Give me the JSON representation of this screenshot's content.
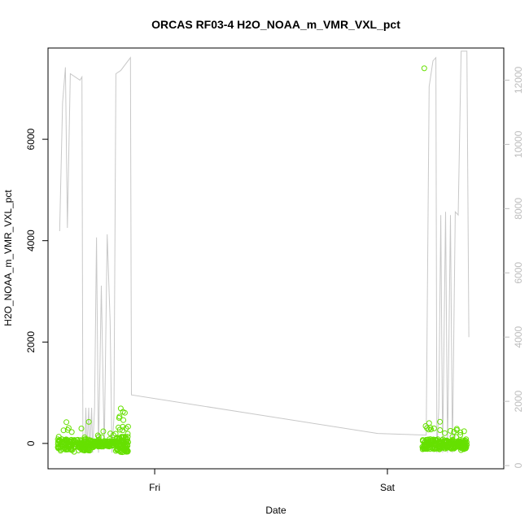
{
  "chart_data": {
    "type": "scatter",
    "title": "ORCAS RF03-4 H2O_NOAA_m_VMR_VXL_pct",
    "xlabel": "Date",
    "ylabel": "H2O_NOAA_m_VMR_VXL_pct",
    "x_ticks": [
      {
        "label": "Fri",
        "value": 24.0
      },
      {
        "label": "Sat",
        "value": 48.0
      }
    ],
    "xlim": [
      13.0,
      60.0
    ],
    "left_axis": {
      "ylim": [
        -500,
        7800
      ],
      "ticks": [
        0,
        2000,
        4000,
        6000
      ],
      "tick_labels": [
        "0",
        "2000",
        "4000",
        "6000"
      ]
    },
    "right_axis": {
      "ylim": [
        -100,
        13000
      ],
      "ticks": [
        0,
        2000,
        4000,
        6000,
        8000,
        10000,
        12000
      ],
      "tick_labels": [
        "0",
        "2000",
        "4000",
        "6000",
        "8000",
        "10000",
        "12000"
      ],
      "color": "#bdbdbd"
    },
    "series": [
      {
        "kind": "line",
        "axis": "right",
        "color": "#c8c8c8",
        "points": [
          [
            14.2,
            7300
          ],
          [
            14.5,
            11300
          ],
          [
            14.8,
            12400
          ],
          [
            15.0,
            7400
          ],
          [
            15.3,
            12200
          ],
          [
            16.3,
            12000
          ],
          [
            16.5,
            12100
          ],
          [
            16.6,
            400
          ],
          [
            16.8,
            600
          ],
          [
            16.9,
            1800
          ],
          [
            17.0,
            400
          ],
          [
            17.2,
            1800
          ],
          [
            17.3,
            400
          ],
          [
            17.5,
            1800
          ],
          [
            17.6,
            400
          ],
          [
            17.8,
            1800
          ],
          [
            18.0,
            7100
          ],
          [
            18.2,
            400
          ],
          [
            18.5,
            5600
          ],
          [
            18.8,
            500
          ],
          [
            19.1,
            7200
          ],
          [
            19.4,
            4500
          ],
          [
            19.6,
            400
          ],
          [
            19.8,
            1500
          ],
          [
            20.0,
            12200
          ],
          [
            20.5,
            12300
          ],
          [
            21.5,
            12700
          ],
          [
            21.6,
            2200
          ],
          [
            47.0,
            1000
          ],
          [
            52.0,
            950
          ],
          [
            52.3,
            11800
          ],
          [
            52.7,
            12600
          ],
          [
            53.0,
            12700
          ],
          [
            53.1,
            400
          ],
          [
            53.3,
            1800
          ],
          [
            53.5,
            7800
          ],
          [
            53.7,
            400
          ],
          [
            54.0,
            7900
          ],
          [
            54.2,
            400
          ],
          [
            54.5,
            7800
          ],
          [
            54.7,
            400
          ],
          [
            55.0,
            7900
          ],
          [
            55.3,
            7800
          ],
          [
            55.6,
            12900
          ],
          [
            56.2,
            12900
          ],
          [
            56.4,
            4000
          ]
        ]
      },
      {
        "kind": "points",
        "axis": "left",
        "color": "#66e000",
        "clusters": [
          {
            "x_range": [
              14.0,
              17.5
            ],
            "y_spread": [
              -200,
              450
            ],
            "n": 170
          },
          {
            "x_range": [
              17.5,
              20.0
            ],
            "y_spread": [
              -80,
              250
            ],
            "n": 120
          },
          {
            "x_range": [
              20.0,
              21.3
            ],
            "y_spread": [
              -200,
              700
            ],
            "n": 90
          },
          {
            "x_range": [
              51.6,
              53.8
            ],
            "y_spread": [
              -150,
              430
            ],
            "n": 110
          },
          {
            "x_range": [
              53.8,
              56.2
            ],
            "y_spread": [
              -150,
              330
            ],
            "n": 130
          }
        ],
        "outliers": [
          [
            51.8,
            7400
          ],
          [
            20.5,
            690
          ],
          [
            14.9,
            420
          ],
          [
            52.3,
            400
          ]
        ]
      }
    ],
    "grid": false,
    "legend": "none"
  }
}
